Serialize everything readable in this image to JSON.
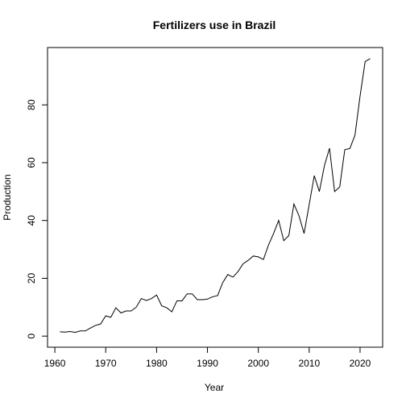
{
  "chart_data": {
    "type": "line",
    "title": "Fertilizers use in Brazil",
    "xlabel": "Year",
    "ylabel": "Production",
    "xlim": [
      1961,
      2022
    ],
    "ylim": [
      0,
      96
    ],
    "grid": false,
    "legend": "none",
    "x_ticks": [
      1960,
      1970,
      1980,
      1990,
      2000,
      2010,
      2020
    ],
    "y_ticks": [
      0,
      20,
      40,
      60,
      80
    ],
    "series": [
      {
        "x": [
          1961,
          1962,
          1963,
          1964,
          1965,
          1966,
          1967,
          1968,
          1969,
          1970,
          1971,
          1972,
          1973,
          1974,
          1975,
          1976,
          1977,
          1978,
          1979,
          1980,
          1981,
          1982,
          1983,
          1984,
          1985,
          1986,
          1987,
          1988,
          1989,
          1990,
          1991,
          1992,
          1993,
          1994,
          1995,
          1996,
          1997,
          1998,
          1999,
          2000,
          2001,
          2002,
          2003,
          2004,
          2005,
          2006,
          2007,
          2008,
          2009,
          2010,
          2011,
          2012,
          2013,
          2014,
          2015,
          2016,
          2017,
          2018,
          2019,
          2020,
          2021,
          2022
        ],
        "values": [
          1.5,
          1.4,
          1.6,
          1.3,
          1.8,
          1.8,
          2.8,
          3.7,
          4.2,
          7.0,
          6.5,
          9.8,
          8.0,
          8.7,
          8.7,
          10.0,
          13.0,
          12.3,
          13.0,
          14.2,
          10.5,
          9.8,
          8.4,
          12.2,
          12.2,
          14.6,
          14.6,
          12.6,
          12.6,
          12.8,
          13.6,
          14.0,
          18.5,
          21.3,
          20.4,
          22.3,
          25.0,
          26.2,
          27.7,
          27.4,
          26.5,
          31.5,
          35.5,
          40.0,
          33.0,
          34.8,
          45.7,
          41.6,
          35.5,
          45.5,
          55.5,
          50.0,
          59.0,
          65.0,
          50.0,
          51.6,
          64.5,
          64.9,
          69.5,
          83.0,
          95.0,
          96.0
        ]
      }
    ]
  }
}
